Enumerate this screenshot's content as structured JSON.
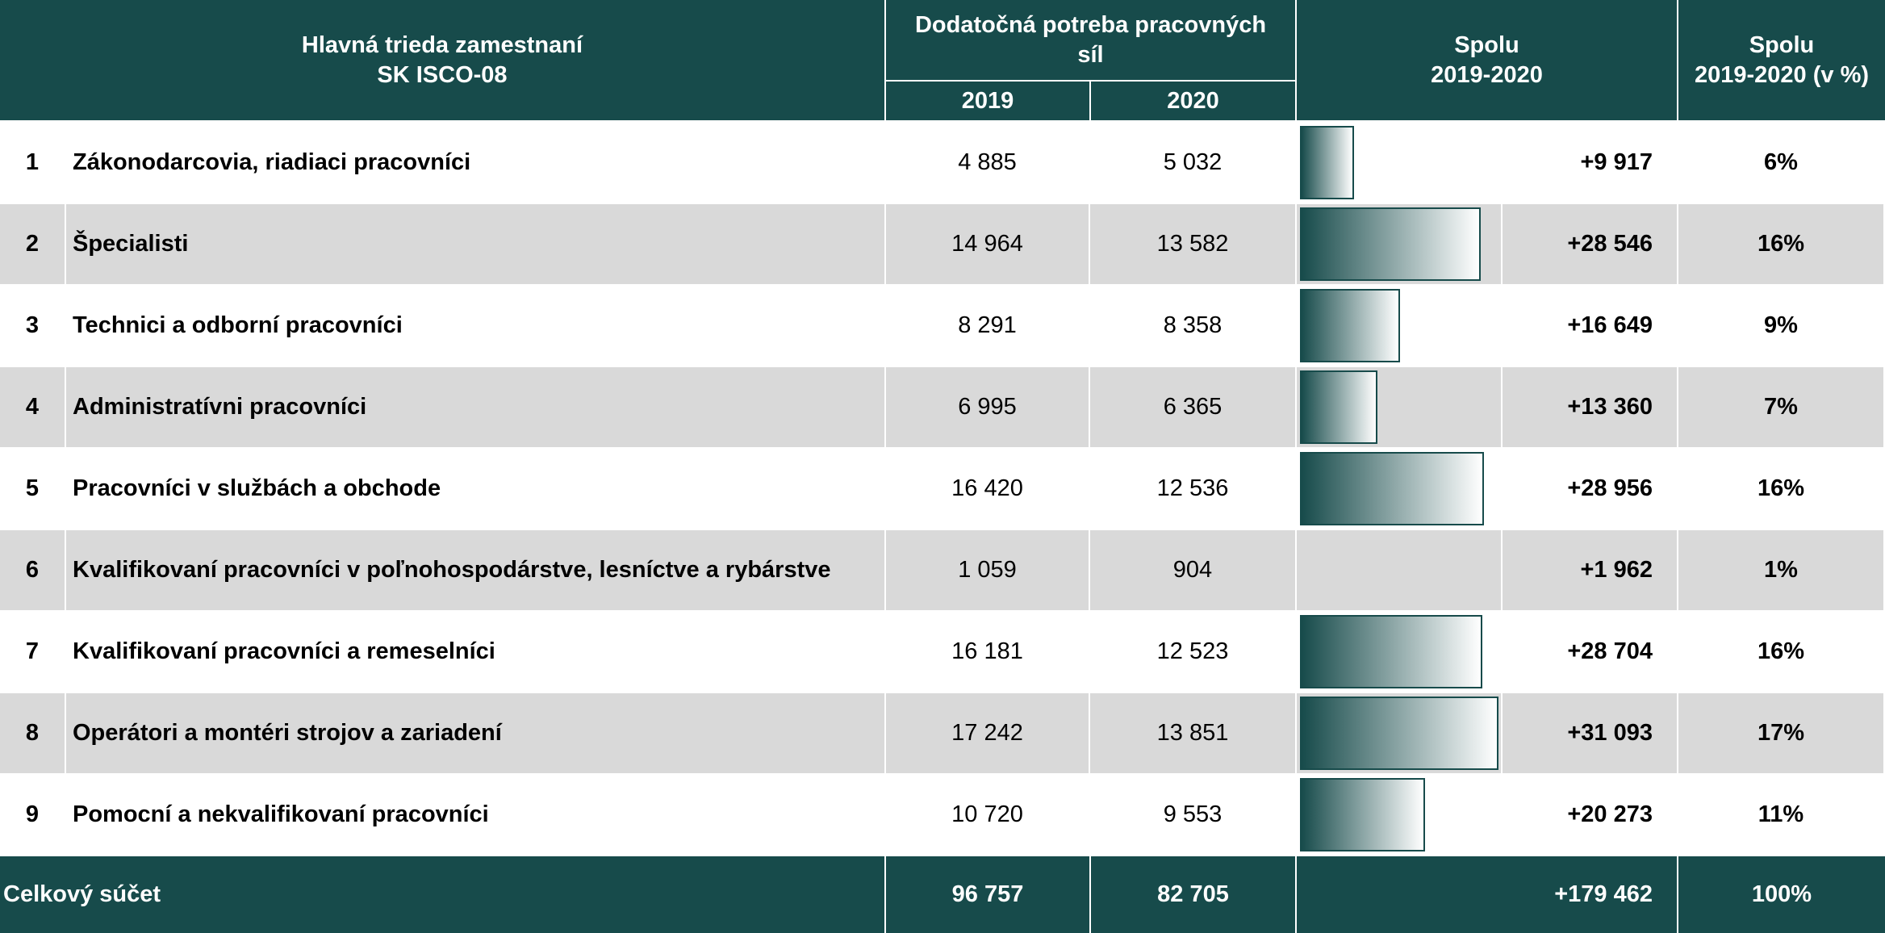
{
  "table": {
    "header": {
      "occupation": [
        "Hlavná trieda zamestnaní",
        "SK ISCO-08"
      ],
      "demand": "Dodatočná potreba pracovných síl",
      "years": [
        "2019",
        "2020"
      ],
      "total": [
        "Spolu",
        "2019-2020"
      ],
      "share": [
        "Spolu",
        "2019-2020 (v %)"
      ]
    },
    "rows": [
      {
        "no": "1",
        "name": "Zákonodarcovia, riadiaci pracovníci",
        "y2019": "4 885",
        "y2020": "5 032",
        "total": {
          "value": 9917,
          "label": "+9 917"
        },
        "share": "6%"
      },
      {
        "no": "2",
        "name": "Špecialisti",
        "y2019": "14 964",
        "y2020": "13 582",
        "total": {
          "value": 28546,
          "label": "+28 546"
        },
        "share": "16%"
      },
      {
        "no": "3",
        "name": "Technici a odborní pracovníci",
        "y2019": "8 291",
        "y2020": "8 358",
        "total": {
          "value": 16649,
          "label": "+16 649"
        },
        "share": "9%"
      },
      {
        "no": "4",
        "name": "Administratívni pracovníci",
        "y2019": "6 995",
        "y2020": "6 365",
        "total": {
          "value": 13360,
          "label": "+13 360"
        },
        "share": "7%"
      },
      {
        "no": "5",
        "name": "Pracovníci v službách a obchode",
        "y2019": "16 420",
        "y2020": "12 536",
        "total": {
          "value": 28956,
          "label": "+28 956"
        },
        "share": "16%"
      },
      {
        "no": "6",
        "name": "Kvalifikovaní pracovníci v poľnohospodárstve, lesníctve a rybárstve",
        "y2019": "1 059",
        "y2020": "904",
        "total": {
          "value": 1962,
          "label": "+1 962"
        },
        "share": "1%"
      },
      {
        "no": "7",
        "name": "Kvalifikovaní pracovníci a remeselníci",
        "y2019": "16 181",
        "y2020": "12 523",
        "total": {
          "value": 28704,
          "label": "+28 704"
        },
        "share": "16%"
      },
      {
        "no": "8",
        "name": "Operátori a montéri strojov a zariadení",
        "y2019": "17 242",
        "y2020": "13 851",
        "total": {
          "value": 31093,
          "label": "+31 093"
        },
        "share": "17%"
      },
      {
        "no": "9",
        "name": "Pomocní a nekvalifikovaní pracovníci",
        "y2019": "10 720",
        "y2020": "9 553",
        "total": {
          "value": 20273,
          "label": "+20 273"
        },
        "share": "11%"
      }
    ],
    "footer": {
      "label": "Celkový súčet",
      "y2019": "96 757",
      "y2020": "82 705",
      "total": "+179 462",
      "share": "100%"
    }
  }
}
